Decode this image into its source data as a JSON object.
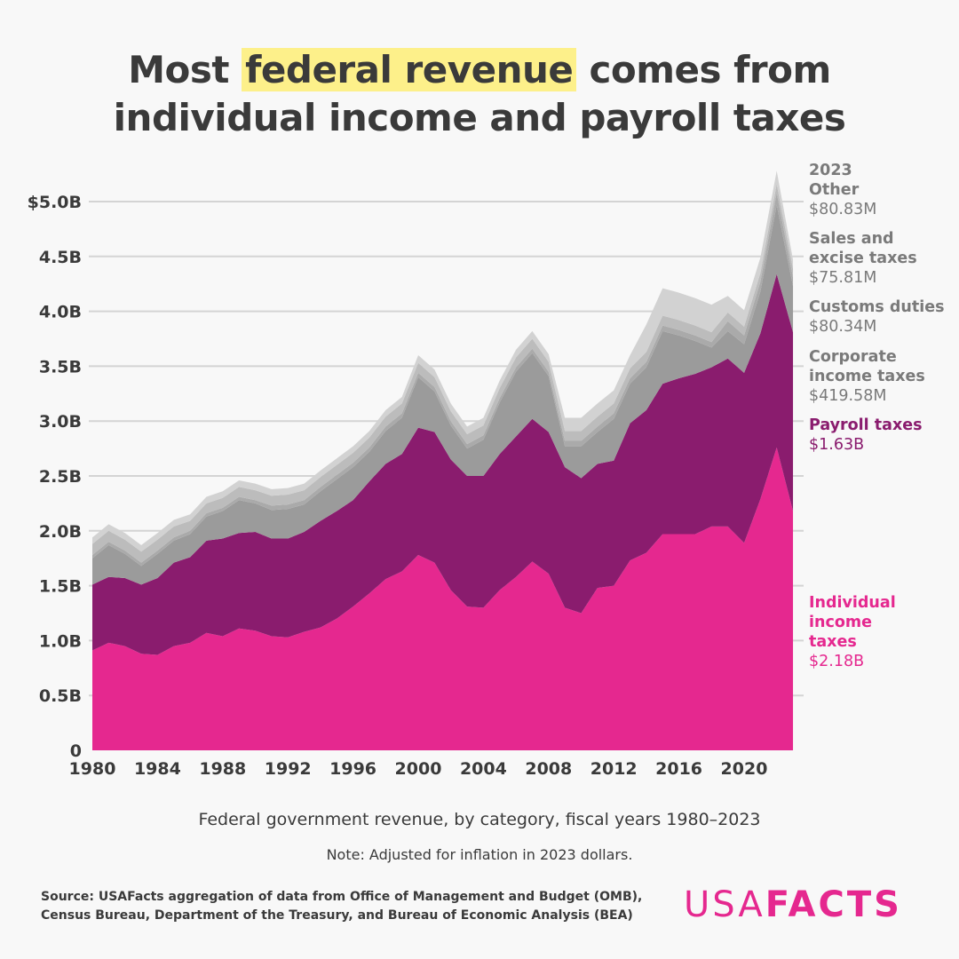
{
  "title": {
    "before": "Most ",
    "highlight": "federal revenue",
    "after": " comes from",
    "line2": "individual income and payroll taxes"
  },
  "subtitle": "Federal government revenue, by category, fiscal years 1980–2023",
  "note": "Note: Adjusted for inflation in 2023 dollars.",
  "source": [
    "Source: USAFacts aggregation of data from Office of Management and Budget (OMB),",
    "Census Bureau, Department of the Treasury, and Bureau of Economic Analysis (BEA)"
  ],
  "logo": {
    "part1": "USA",
    "part2": "FACTS"
  },
  "labels": {
    "year": "2023",
    "other": {
      "name": "Other",
      "value": "$80.83M"
    },
    "excise": {
      "name1": "Sales and",
      "name2": "excise taxes",
      "value": "$75.81M"
    },
    "customs": {
      "name": "Customs duties",
      "value": "$80.34M"
    },
    "corporate": {
      "name1": "Corporate",
      "name2": "income taxes",
      "value": "$419.58M"
    },
    "payroll": {
      "name": "Payroll taxes",
      "value": "$1.63B"
    },
    "individual": {
      "name1": "Individual",
      "name2": "income",
      "name3": "taxes",
      "value": "$2.18B"
    }
  },
  "chart_data": {
    "type": "area",
    "stacked": true,
    "ylim": [
      0,
      5.3
    ],
    "grid": true,
    "yticks": [
      0,
      0.5,
      1,
      1.5,
      2,
      2.5,
      3,
      3.5,
      4,
      4.5,
      5
    ],
    "ytick_labels": [
      "0",
      "0.5B",
      "1.0B",
      "1.5B",
      "2.0B",
      "2.5B",
      "3.0B",
      "3.5B",
      "4.0B",
      "4.5B",
      "$5.0B"
    ],
    "xticks": [
      1980,
      1984,
      1988,
      1992,
      1996,
      2000,
      2004,
      2008,
      2012,
      2016,
      2020
    ],
    "x": [
      1980,
      1981,
      1982,
      1983,
      1984,
      1985,
      1986,
      1987,
      1988,
      1989,
      1990,
      1991,
      1992,
      1993,
      1994,
      1995,
      1996,
      1997,
      1998,
      1999,
      2000,
      2001,
      2002,
      2003,
      2004,
      2005,
      2006,
      2007,
      2008,
      2009,
      2010,
      2011,
      2012,
      2013,
      2014,
      2015,
      2016,
      2017,
      2018,
      2019,
      2020,
      2021,
      2022,
      2023
    ],
    "series": [
      {
        "name": "Individual income taxes",
        "color": "#e5288f",
        "values": [
          0.91,
          0.98,
          0.95,
          0.88,
          0.87,
          0.95,
          0.98,
          1.07,
          1.04,
          1.11,
          1.09,
          1.04,
          1.03,
          1.08,
          1.12,
          1.2,
          1.31,
          1.43,
          1.56,
          1.63,
          1.78,
          1.71,
          1.46,
          1.31,
          1.3,
          1.46,
          1.58,
          1.72,
          1.61,
          1.3,
          1.25,
          1.48,
          1.5,
          1.73,
          1.8,
          1.97,
          1.97,
          1.97,
          2.04,
          2.04,
          1.89,
          2.29,
          2.76,
          2.18
        ]
      },
      {
        "name": "Payroll taxes",
        "color": "#8a1c6e",
        "values": [
          0.6,
          0.6,
          0.62,
          0.63,
          0.7,
          0.76,
          0.78,
          0.84,
          0.89,
          0.87,
          0.9,
          0.89,
          0.9,
          0.91,
          0.97,
          0.98,
          0.97,
          1.02,
          1.05,
          1.07,
          1.16,
          1.19,
          1.19,
          1.19,
          1.2,
          1.24,
          1.28,
          1.3,
          1.29,
          1.28,
          1.23,
          1.13,
          1.14,
          1.25,
          1.3,
          1.37,
          1.42,
          1.46,
          1.45,
          1.53,
          1.55,
          1.51,
          1.58,
          1.63
        ]
      },
      {
        "name": "Corporate income taxes",
        "color": "#9b9b9b",
        "values": [
          0.24,
          0.29,
          0.22,
          0.17,
          0.22,
          0.2,
          0.21,
          0.22,
          0.25,
          0.3,
          0.26,
          0.26,
          0.27,
          0.25,
          0.27,
          0.29,
          0.3,
          0.27,
          0.3,
          0.33,
          0.46,
          0.37,
          0.31,
          0.25,
          0.33,
          0.47,
          0.59,
          0.6,
          0.51,
          0.19,
          0.29,
          0.29,
          0.38,
          0.36,
          0.39,
          0.48,
          0.39,
          0.3,
          0.18,
          0.25,
          0.26,
          0.38,
          0.63,
          0.42
        ]
      },
      {
        "name": "Customs duties",
        "color": "#aaaaaa",
        "values": [
          0.03,
          0.03,
          0.03,
          0.03,
          0.03,
          0.03,
          0.03,
          0.03,
          0.03,
          0.03,
          0.03,
          0.04,
          0.04,
          0.04,
          0.04,
          0.04,
          0.04,
          0.04,
          0.04,
          0.04,
          0.04,
          0.04,
          0.04,
          0.04,
          0.04,
          0.04,
          0.04,
          0.04,
          0.04,
          0.05,
          0.05,
          0.05,
          0.05,
          0.05,
          0.05,
          0.05,
          0.05,
          0.05,
          0.05,
          0.09,
          0.08,
          0.09,
          0.11,
          0.08
        ]
      },
      {
        "name": "Sales and excise taxes",
        "color": "#bcbcbc",
        "values": [
          0.1,
          0.1,
          0.1,
          0.1,
          0.1,
          0.1,
          0.09,
          0.09,
          0.09,
          0.09,
          0.09,
          0.09,
          0.09,
          0.09,
          0.09,
          0.09,
          0.09,
          0.09,
          0.09,
          0.09,
          0.09,
          0.09,
          0.09,
          0.09,
          0.09,
          0.09,
          0.09,
          0.09,
          0.09,
          0.09,
          0.09,
          0.09,
          0.09,
          0.09,
          0.09,
          0.09,
          0.09,
          0.09,
          0.09,
          0.08,
          0.08,
          0.08,
          0.08,
          0.08
        ]
      },
      {
        "name": "Other",
        "color": "#d2d2d2",
        "values": [
          0.06,
          0.06,
          0.06,
          0.06,
          0.06,
          0.06,
          0.06,
          0.06,
          0.06,
          0.06,
          0.06,
          0.06,
          0.06,
          0.06,
          0.06,
          0.06,
          0.06,
          0.06,
          0.06,
          0.06,
          0.07,
          0.07,
          0.07,
          0.07,
          0.07,
          0.07,
          0.07,
          0.07,
          0.07,
          0.12,
          0.12,
          0.12,
          0.12,
          0.12,
          0.25,
          0.25,
          0.25,
          0.25,
          0.25,
          0.15,
          0.15,
          0.14,
          0.12,
          0.08
        ]
      }
    ]
  }
}
